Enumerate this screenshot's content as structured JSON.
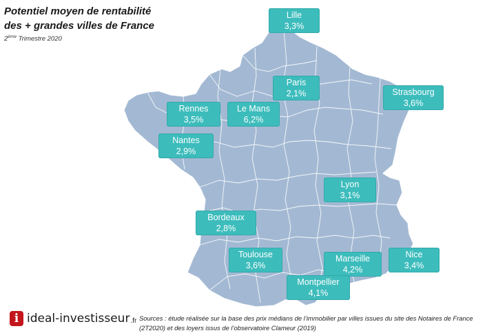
{
  "header": {
    "title_line1": "Potentiel moyen de rentabilité",
    "title_line2": "des + grandes villes de France",
    "subtitle_num": "2",
    "subtitle_sup": "ème",
    "subtitle_rest": " Trimestre 2020"
  },
  "map": {
    "fill_color": "#a3b9d3",
    "border_color": "#ffffff",
    "label_color": "#3dbcbc"
  },
  "cities": [
    {
      "name": "Lille",
      "value": "3,3%"
    },
    {
      "name": "Paris",
      "value": "2,1%"
    },
    {
      "name": "Strasbourg",
      "value": "3,6%"
    },
    {
      "name": "Rennes",
      "value": "3,5%"
    },
    {
      "name": "Le Mans",
      "value": "6,2%"
    },
    {
      "name": "Nantes",
      "value": "2,9%"
    },
    {
      "name": "Lyon",
      "value": "3,1%"
    },
    {
      "name": "Bordeaux",
      "value": "2,8%"
    },
    {
      "name": "Toulouse",
      "value": "3,6%"
    },
    {
      "name": "Marseille",
      "value": "4,2%"
    },
    {
      "name": "Nice",
      "value": "3,4%"
    },
    {
      "name": "Montpellier",
      "value": "4,1%"
    }
  ],
  "footer": {
    "logo_letter": "i",
    "logo_text": "ideal-investisseur",
    "logo_tld": ".fr",
    "sources": "Sources : étude réalisée sur la base des prix médians de l’immobilier par villes issues du site des Notaires de France (2T2020) et des loyers issus de l’observatoire Clameur (2019)"
  }
}
